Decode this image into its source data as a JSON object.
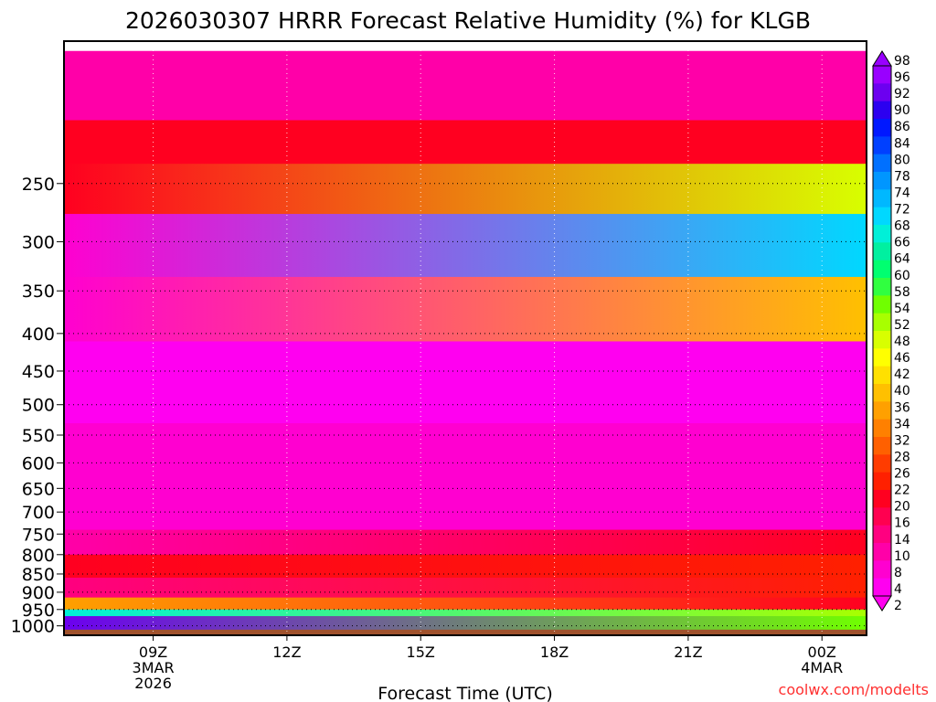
{
  "chart_data": {
    "type": "heatmap",
    "title": "2026030307 HRRR Forecast Relative Humidity (%) for KLGB",
    "xlabel": "Forecast Time (UTC)",
    "ylabel": "",
    "credit": "coolwx.com/modelts",
    "x_ticks": [
      {
        "hour": 9,
        "lines": [
          "09Z",
          "3MAR",
          "2026"
        ]
      },
      {
        "hour": 12,
        "lines": [
          "12Z"
        ]
      },
      {
        "hour": 15,
        "lines": [
          "15Z"
        ]
      },
      {
        "hour": 18,
        "lines": [
          "18Z"
        ]
      },
      {
        "hour": 21,
        "lines": [
          "21Z"
        ]
      },
      {
        "hour": 24,
        "lines": [
          "00Z",
          "4MAR"
        ]
      }
    ],
    "x_range_hours": [
      7,
      25
    ],
    "y_scale": "log-pressure (inverted)",
    "y_range_hpa": [
      1030,
      160
    ],
    "y_ticks": [
      250,
      300,
      350,
      400,
      450,
      500,
      550,
      600,
      650,
      700,
      750,
      800,
      850,
      900,
      950,
      1000
    ],
    "grid": "dotted",
    "colorbar_labels": [
      98,
      96,
      92,
      90,
      86,
      84,
      80,
      78,
      74,
      72,
      68,
      66,
      64,
      60,
      58,
      54,
      52,
      48,
      46,
      42,
      40,
      36,
      34,
      32,
      28,
      26,
      22,
      20,
      16,
      14,
      10,
      8,
      4,
      2
    ],
    "colorbar_colors": [
      "#9900ff",
      "#6c00f0",
      "#2c00f0",
      "#0018ff",
      "#0040ff",
      "#0070ff",
      "#0096ff",
      "#00b8ff",
      "#00d8ff",
      "#00f0d8",
      "#00f0a0",
      "#00ff70",
      "#30ff40",
      "#70ff00",
      "#a8ff00",
      "#d8ff00",
      "#ffff00",
      "#ffe000",
      "#ffc000",
      "#ffa000",
      "#ff8000",
      "#ff6000",
      "#ff3c00",
      "#ff2000",
      "#ff0020",
      "#ff0050",
      "#ff0080",
      "#ff00a8",
      "#ff00d0",
      "#ff00f0"
    ],
    "ground": {
      "color": "#a0522d"
    },
    "rh_layers": [
      {
        "p_top": 165,
        "p_bottom": 205,
        "rh_start": 9,
        "rh_end": 10
      },
      {
        "p_top": 205,
        "p_bottom": 235,
        "rh_start": 20,
        "rh_end": 18
      },
      {
        "p_top": 235,
        "p_bottom": 275,
        "rh_start": 20,
        "rh_end": 48
      },
      {
        "p_top": 275,
        "p_bottom": 335,
        "rh_start": 8,
        "rh_end": 72
      },
      {
        "p_top": 335,
        "p_bottom": 410,
        "rh_start": 6,
        "rh_end": 40
      },
      {
        "p_top": 410,
        "p_bottom": 530,
        "rh_start": 5,
        "rh_end": 4
      },
      {
        "p_top": 530,
        "p_bottom": 740,
        "rh_start": 7,
        "rh_end": 8
      },
      {
        "p_top": 740,
        "p_bottom": 800,
        "rh_start": 11,
        "rh_end": 18
      },
      {
        "p_top": 800,
        "p_bottom": 860,
        "rh_start": 20,
        "rh_end": 24
      },
      {
        "p_top": 860,
        "p_bottom": 915,
        "rh_start": 14,
        "rh_end": 22
      },
      {
        "p_top": 915,
        "p_bottom": 950,
        "rh_start": 34,
        "rh_end": 20
      },
      {
        "p_top": 950,
        "p_bottom": 970,
        "rh_start": 68,
        "rh_end": 52
      },
      {
        "p_top": 970,
        "p_bottom": 1012,
        "rh_start": 92,
        "rh_end": 56
      }
    ]
  }
}
